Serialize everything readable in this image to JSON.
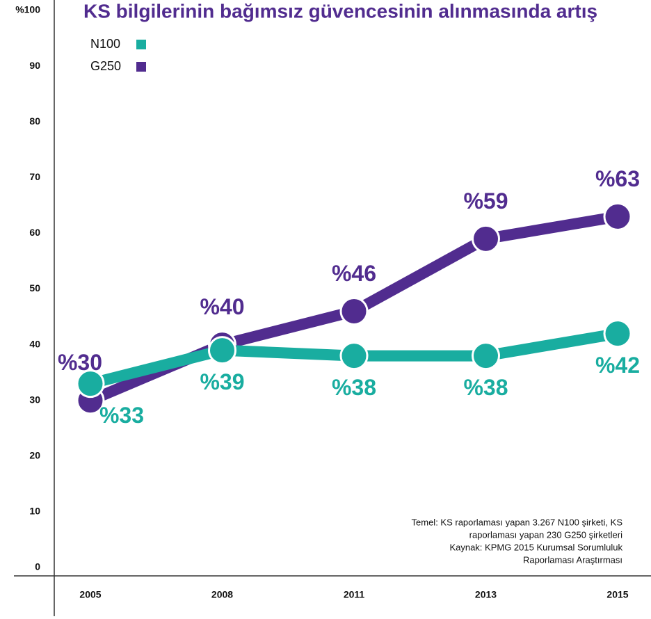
{
  "chart_data": {
    "type": "line",
    "title": "KS bilgilerinin bağımsız güvencesinin alınmasında artış",
    "categories": [
      "2005",
      "2008",
      "2011",
      "2013",
      "2015"
    ],
    "series": [
      {
        "name": "N100",
        "color": "#19ada0",
        "values": [
          33,
          39,
          38,
          38,
          42
        ],
        "value_labels": [
          "%33",
          "%39",
          "%38",
          "%38",
          "%42"
        ]
      },
      {
        "name": "G250",
        "color": "#512c8f",
        "values": [
          30,
          40,
          46,
          59,
          63
        ],
        "value_labels": [
          "%30",
          "%40",
          "%46",
          "%59",
          "%63"
        ]
      }
    ],
    "ylim": [
      0,
      100
    ],
    "yticks": [
      0,
      10,
      20,
      30,
      40,
      50,
      60,
      70,
      80,
      90,
      {
        "value": 100,
        "label": "%100"
      }
    ],
    "note": [
      "Temel: KS raporlaması yapan 3.267 N100 şirketi, KS",
      "raporlaması yapan 230 G250 şirketleri",
      "Kaynak: KPMG 2015 Kurumsal Sorumluluk",
      "Raporlaması Araştırması"
    ]
  }
}
